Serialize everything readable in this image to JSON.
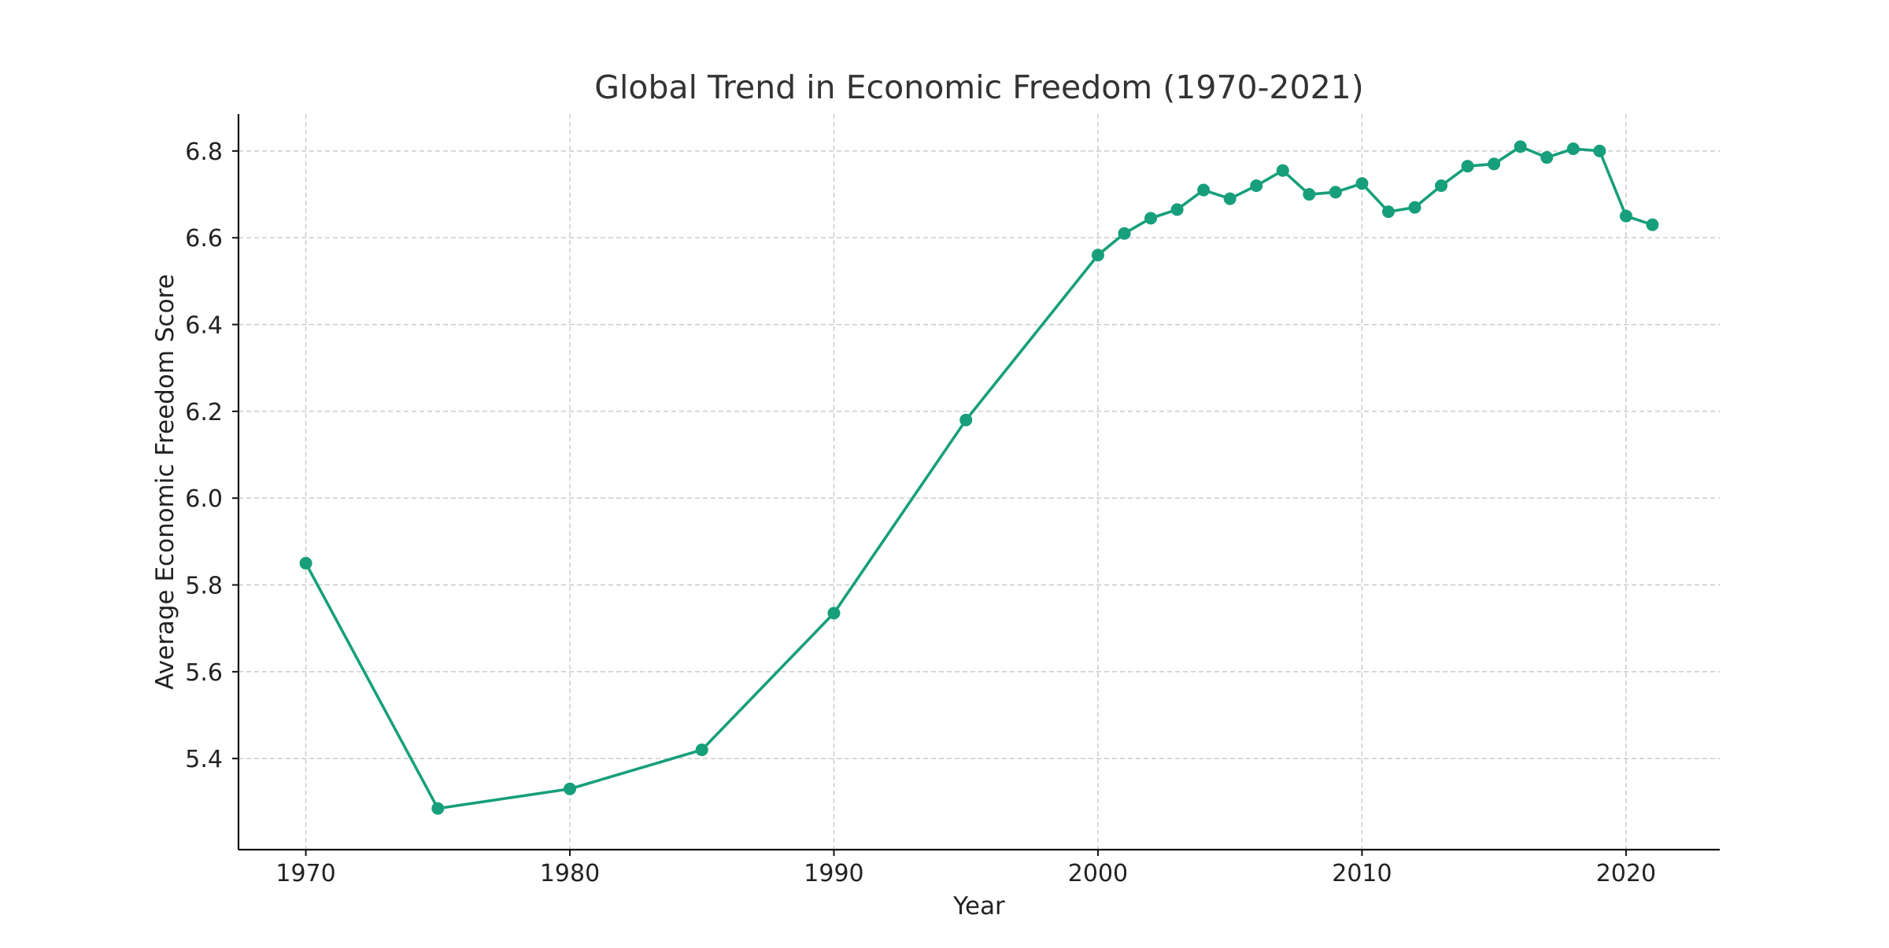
{
  "chart_data": {
    "type": "line",
    "title": "Global Trend in Economic Freedom (1970-2021)",
    "xlabel": "Year",
    "ylabel": "Average Economic Freedom Score",
    "xlim": [
      1967.45,
      2023.55
    ],
    "ylim": [
      5.19,
      6.885
    ],
    "xticks": [
      1970,
      1980,
      1990,
      2000,
      2010,
      2020
    ],
    "yticks": [
      5.4,
      5.6,
      5.8,
      6.0,
      6.2,
      6.4,
      6.6,
      6.8
    ],
    "ytick_labels": [
      "5.4",
      "5.6",
      "5.8",
      "6.0",
      "6.2",
      "6.4",
      "6.6",
      "6.8"
    ],
    "grid": true,
    "series": [
      {
        "color": "#169f7a",
        "marker": "circle",
        "x": [
          1970,
          1975,
          1980,
          1985,
          1990,
          1995,
          2000,
          2001,
          2002,
          2003,
          2004,
          2005,
          2006,
          2007,
          2008,
          2009,
          2010,
          2011,
          2012,
          2013,
          2014,
          2015,
          2016,
          2017,
          2018,
          2019,
          2020,
          2021
        ],
        "y": [
          5.85,
          5.285,
          5.33,
          5.42,
          5.735,
          6.18,
          6.56,
          6.61,
          6.645,
          6.665,
          6.71,
          6.69,
          6.72,
          6.755,
          6.7,
          6.705,
          6.725,
          6.66,
          6.67,
          6.72,
          6.765,
          6.77,
          6.81,
          6.785,
          6.805,
          6.8,
          6.65,
          6.63
        ]
      }
    ]
  }
}
